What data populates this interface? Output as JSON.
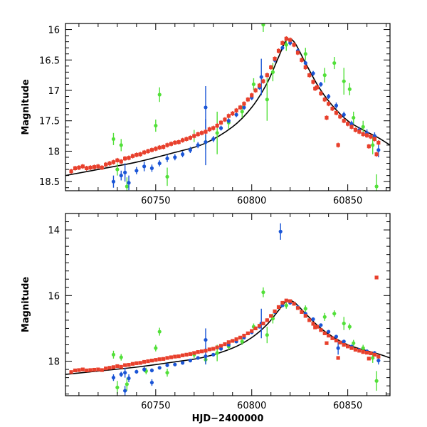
{
  "colors": {
    "red": "#e8402c",
    "blue": "#1a55d6",
    "green": "#52e039",
    "model": "#000000"
  },
  "chart_data": [
    {
      "type": "scatter",
      "title": "",
      "xlabel": "",
      "ylabel": "Magnitude",
      "xlim": [
        60703,
        60872
      ],
      "ylim": [
        18.65,
        15.9
      ],
      "y_inverted": true,
      "xticks": [
        60750,
        60800,
        60850
      ],
      "yticks": [
        16,
        16.5,
        17,
        17.5,
        18,
        18.5
      ],
      "ytick_labels": [
        "16",
        "16.5",
        "17",
        "17.5",
        "18",
        "18.5"
      ],
      "grid": false,
      "model_curve": {
        "x": [
          60703,
          60720,
          60740,
          60760,
          60775,
          60790,
          60800,
          60808,
          60814,
          60818,
          60822,
          60828,
          60835,
          60842,
          60850,
          60858,
          60866,
          60872
        ],
        "y": [
          18.4,
          18.3,
          18.18,
          18.02,
          17.88,
          17.6,
          17.28,
          16.88,
          16.45,
          16.18,
          16.2,
          16.55,
          16.95,
          17.25,
          17.5,
          17.65,
          17.78,
          17.9
        ]
      },
      "series": [
        {
          "color": "red",
          "x": [
            60706,
            60708,
            60710,
            60712,
            60714,
            60716,
            60718,
            60720,
            60722,
            60724,
            60726,
            60728,
            60730,
            60732,
            60734,
            60736,
            60738,
            60740,
            60742,
            60744,
            60746,
            60748,
            60750,
            60752,
            60754,
            60756,
            60758,
            60760,
            60762,
            60764,
            60766,
            60768,
            60770,
            60772,
            60774,
            60776,
            60778,
            60780,
            60782,
            60784,
            60786,
            60788,
            60790,
            60792,
            60794,
            60796,
            60798,
            60800,
            60802,
            60804,
            60806,
            60808,
            60810,
            60812,
            60814,
            60816,
            60818,
            60820,
            60822,
            60824,
            60826,
            60828,
            60830,
            60832,
            60834,
            60836,
            60838,
            60840,
            60842,
            60844,
            60846,
            60848,
            60850,
            60852,
            60854,
            60856,
            60858,
            60860,
            60862,
            60864,
            60866,
            60833,
            60839,
            60845,
            60861,
            60865
          ],
          "y": [
            18.33,
            18.28,
            18.27,
            18.25,
            18.28,
            18.27,
            18.26,
            18.25,
            18.27,
            18.22,
            18.2,
            18.18,
            18.15,
            18.17,
            18.12,
            18.11,
            18.08,
            18.06,
            18.05,
            18.02,
            18.0,
            17.98,
            17.96,
            17.94,
            17.93,
            17.9,
            17.88,
            17.86,
            17.85,
            17.82,
            17.8,
            17.78,
            17.75,
            17.72,
            17.7,
            17.68,
            17.64,
            17.62,
            17.58,
            17.53,
            17.48,
            17.42,
            17.38,
            17.33,
            17.28,
            17.22,
            17.15,
            17.08,
            17.0,
            16.92,
            16.85,
            16.75,
            16.62,
            16.48,
            16.35,
            16.22,
            16.15,
            16.17,
            16.25,
            16.38,
            16.5,
            16.62,
            16.75,
            16.86,
            16.95,
            17.05,
            17.15,
            17.22,
            17.3,
            17.37,
            17.43,
            17.5,
            17.55,
            17.6,
            17.65,
            17.68,
            17.72,
            17.74,
            17.76,
            17.8,
            17.86,
            16.97,
            17.45,
            17.9,
            17.92,
            18.05
          ]
        },
        {
          "color": "blue",
          "x": [
            60728,
            60732,
            60734,
            60736,
            60740,
            60744,
            60748,
            60752,
            60756,
            60760,
            60764,
            60768,
            60772,
            60776,
            60780,
            60784,
            60788,
            60792,
            60796,
            60800,
            60804,
            60808,
            60812,
            60816,
            60820,
            60824,
            60828,
            60832,
            60836,
            60840,
            60844,
            60848,
            60852,
            60856,
            60860,
            60864,
            60866,
            60776,
            60805
          ],
          "y": [
            18.5,
            18.4,
            18.35,
            18.52,
            18.32,
            18.25,
            18.28,
            18.2,
            18.12,
            18.1,
            18.05,
            17.98,
            17.9,
            17.85,
            17.8,
            17.62,
            17.5,
            17.4,
            17.28,
            17.12,
            16.95,
            16.75,
            16.5,
            16.3,
            16.22,
            16.35,
            16.55,
            16.72,
            16.9,
            17.1,
            17.25,
            17.4,
            17.55,
            17.65,
            17.7,
            17.75,
            17.98,
            17.28,
            16.78
          ],
          "err": [
            0.1,
            0.08,
            0.15,
            0.12,
            0.06,
            0.08,
            0.06,
            0.05,
            0.06,
            0.05,
            0.05,
            0.05,
            0.05,
            0.38,
            0.05,
            0.04,
            0.04,
            0.04,
            0.04,
            0.04,
            0.04,
            0.04,
            0.04,
            0.04,
            0.04,
            0.04,
            0.04,
            0.04,
            0.04,
            0.04,
            0.05,
            0.05,
            0.05,
            0.05,
            0.06,
            0.06,
            0.12,
            0.35,
            0.3
          ]
        },
        {
          "color": "green",
          "x": [
            60728,
            60730,
            60732,
            60735,
            60750,
            60752,
            60756,
            60770,
            60776,
            60782,
            60788,
            60795,
            60801,
            60806,
            60808,
            60811,
            60818,
            60828,
            60838,
            60843,
            60848,
            60851,
            60853,
            60858,
            60863,
            60865
          ],
          "y": [
            17.8,
            18.3,
            17.9,
            18.58,
            17.58,
            17.07,
            18.42,
            17.75,
            17.85,
            17.7,
            17.53,
            17.35,
            16.9,
            15.92,
            17.15,
            16.7,
            16.25,
            16.4,
            16.75,
            16.55,
            16.85,
            16.98,
            17.45,
            17.6,
            17.9,
            18.58
          ],
          "err": [
            0.1,
            0.1,
            0.1,
            0.15,
            0.1,
            0.12,
            0.15,
            0.1,
            0.12,
            0.35,
            0.1,
            0.1,
            0.1,
            0.12,
            0.35,
            0.15,
            0.1,
            0.1,
            0.12,
            0.1,
            0.22,
            0.1,
            0.1,
            0.1,
            0.15,
            0.2
          ]
        }
      ]
    },
    {
      "type": "scatter",
      "title": "",
      "xlabel": "HJD−2400000",
      "ylabel": "Magnitude",
      "xlim": [
        60703,
        60872
      ],
      "ylim": [
        19.05,
        13.5
      ],
      "y_inverted": true,
      "xticks": [
        60750,
        60800,
        60850
      ],
      "yticks": [
        14,
        16,
        18
      ],
      "ytick_labels": [
        "14",
        "16",
        "18"
      ],
      "grid": false,
      "model_curve": {
        "x": [
          60703,
          60720,
          60740,
          60760,
          60775,
          60790,
          60800,
          60808,
          60814,
          60818,
          60822,
          60828,
          60835,
          60842,
          60850,
          60858,
          60866,
          60872
        ],
        "y": [
          18.4,
          18.3,
          18.18,
          18.02,
          17.88,
          17.6,
          17.28,
          16.88,
          16.45,
          16.18,
          16.2,
          16.55,
          16.95,
          17.25,
          17.5,
          17.65,
          17.78,
          17.9
        ]
      },
      "series": [
        {
          "color": "red",
          "x": [
            60706,
            60708,
            60710,
            60712,
            60714,
            60716,
            60718,
            60720,
            60722,
            60724,
            60726,
            60728,
            60730,
            60732,
            60734,
            60736,
            60738,
            60740,
            60742,
            60744,
            60746,
            60748,
            60750,
            60752,
            60754,
            60756,
            60758,
            60760,
            60762,
            60764,
            60766,
            60768,
            60770,
            60772,
            60774,
            60776,
            60778,
            60780,
            60782,
            60784,
            60786,
            60788,
            60790,
            60792,
            60794,
            60796,
            60798,
            60800,
            60802,
            60804,
            60806,
            60808,
            60810,
            60812,
            60814,
            60816,
            60818,
            60820,
            60822,
            60824,
            60826,
            60828,
            60830,
            60832,
            60834,
            60836,
            60838,
            60840,
            60842,
            60844,
            60846,
            60848,
            60850,
            60852,
            60854,
            60856,
            60858,
            60860,
            60862,
            60864,
            60866,
            60865,
            60833,
            60839,
            60845,
            60861
          ],
          "y": [
            18.33,
            18.28,
            18.27,
            18.25,
            18.28,
            18.27,
            18.26,
            18.25,
            18.27,
            18.22,
            18.2,
            18.18,
            18.15,
            18.17,
            18.12,
            18.11,
            18.08,
            18.06,
            18.05,
            18.02,
            18.0,
            17.98,
            17.96,
            17.94,
            17.93,
            17.9,
            17.88,
            17.86,
            17.85,
            17.82,
            17.8,
            17.78,
            17.75,
            17.72,
            17.7,
            17.68,
            17.64,
            17.62,
            17.58,
            17.53,
            17.48,
            17.42,
            17.38,
            17.33,
            17.28,
            17.22,
            17.15,
            17.08,
            17.0,
            16.92,
            16.85,
            16.75,
            16.62,
            16.48,
            16.35,
            16.22,
            16.15,
            16.17,
            16.25,
            16.38,
            16.5,
            16.62,
            16.75,
            16.86,
            16.95,
            17.05,
            17.15,
            17.22,
            17.3,
            17.37,
            17.43,
            17.5,
            17.55,
            17.6,
            17.65,
            17.68,
            17.72,
            17.74,
            17.76,
            17.8,
            17.86,
            15.45,
            16.97,
            17.45,
            17.9,
            17.92
          ]
        },
        {
          "color": "blue",
          "x": [
            60728,
            60732,
            60734,
            60736,
            60740,
            60744,
            60748,
            60752,
            60756,
            60760,
            60764,
            60768,
            60772,
            60776,
            60780,
            60784,
            60788,
            60792,
            60796,
            60800,
            60804,
            60808,
            60812,
            60816,
            60820,
            60824,
            60828,
            60832,
            60836,
            60840,
            60844,
            60848,
            60852,
            60856,
            60860,
            60864,
            60866,
            60734,
            60748,
            60776,
            60805,
            60815,
            60845
          ],
          "y": [
            18.5,
            18.4,
            18.35,
            18.52,
            18.32,
            18.25,
            18.28,
            18.2,
            18.12,
            18.1,
            18.05,
            17.98,
            17.9,
            17.85,
            17.8,
            17.62,
            17.5,
            17.4,
            17.28,
            17.12,
            16.95,
            16.75,
            16.5,
            16.3,
            16.22,
            16.35,
            16.55,
            16.72,
            16.9,
            17.1,
            17.25,
            17.4,
            17.55,
            17.65,
            17.7,
            17.75,
            17.98,
            18.9,
            18.65,
            17.35,
            16.85,
            14.05,
            17.6
          ],
          "err": [
            0.1,
            0.08,
            0.15,
            0.12,
            0.06,
            0.08,
            0.06,
            0.05,
            0.06,
            0.05,
            0.05,
            0.05,
            0.05,
            0.25,
            0.05,
            0.04,
            0.04,
            0.04,
            0.04,
            0.04,
            0.04,
            0.04,
            0.04,
            0.04,
            0.04,
            0.04,
            0.04,
            0.04,
            0.04,
            0.04,
            0.05,
            0.05,
            0.05,
            0.05,
            0.06,
            0.06,
            0.12,
            0.15,
            0.1,
            0.35,
            0.45,
            0.25,
            0.2
          ]
        },
        {
          "color": "green",
          "x": [
            60728,
            60730,
            60732,
            60735,
            60745,
            60750,
            60752,
            60756,
            60770,
            60776,
            60782,
            60788,
            60795,
            60801,
            60806,
            60808,
            60811,
            60818,
            60828,
            60838,
            60843,
            60848,
            60851,
            60853,
            60858,
            60863,
            60865
          ],
          "y": [
            17.8,
            18.8,
            17.88,
            18.7,
            18.3,
            17.6,
            17.1,
            18.35,
            17.8,
            17.95,
            17.75,
            17.55,
            17.4,
            16.95,
            15.9,
            17.2,
            16.7,
            16.3,
            16.4,
            16.65,
            16.55,
            16.85,
            16.95,
            17.45,
            17.6,
            17.9,
            18.6
          ],
          "err": [
            0.12,
            0.2,
            0.1,
            0.2,
            0.1,
            0.1,
            0.12,
            0.12,
            0.1,
            0.12,
            0.25,
            0.1,
            0.1,
            0.1,
            0.15,
            0.25,
            0.15,
            0.1,
            0.1,
            0.12,
            0.1,
            0.2,
            0.1,
            0.1,
            0.1,
            0.15,
            0.3
          ]
        }
      ]
    }
  ]
}
